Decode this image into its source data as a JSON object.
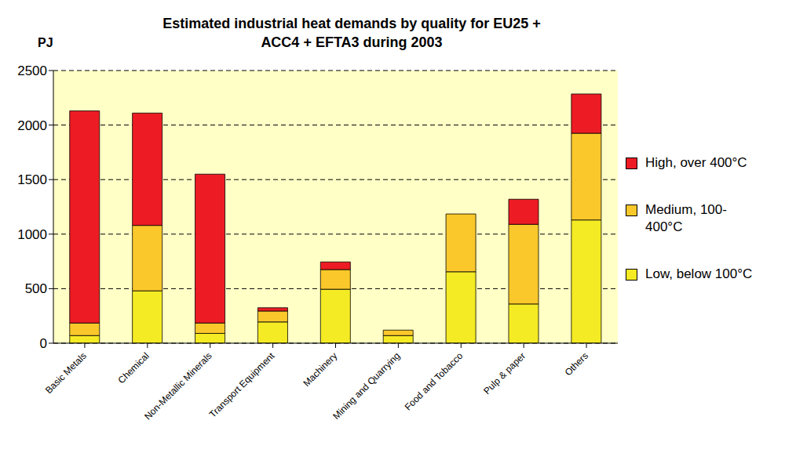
{
  "chart_data": {
    "type": "bar",
    "title": "Estimated industrial heat demands by quality for EU25 + ACC4 + EFTA3 during 2003",
    "ylabel": "PJ",
    "categories": [
      "Basic Metals",
      "Chemical",
      "Non-Metallic Minerals",
      "Transport Equipment",
      "Machinery",
      "Mining and Quarrying",
      "Food and Tobacco",
      "Pulp & paper",
      "Others"
    ],
    "series": [
      {
        "name": "Low, below 100°C",
        "color": "#F5EB24",
        "values": [
          70,
          480,
          90,
          195,
          495,
          70,
          655,
          360,
          1130
        ]
      },
      {
        "name": "Medium, 100-400°C",
        "color": "#FBC82B",
        "values": [
          115,
          600,
          95,
          100,
          180,
          50,
          530,
          730,
          795
        ]
      },
      {
        "name": "High, over 400°C",
        "color": "#ED1C24",
        "values": [
          1945,
          1030,
          1365,
          30,
          70,
          0,
          0,
          230,
          360
        ]
      }
    ],
    "stacked": true,
    "ylim": [
      0,
      2500
    ],
    "yticks": [
      0,
      500,
      1000,
      1500,
      2000,
      2500
    ],
    "grid": true,
    "legend": "right"
  }
}
